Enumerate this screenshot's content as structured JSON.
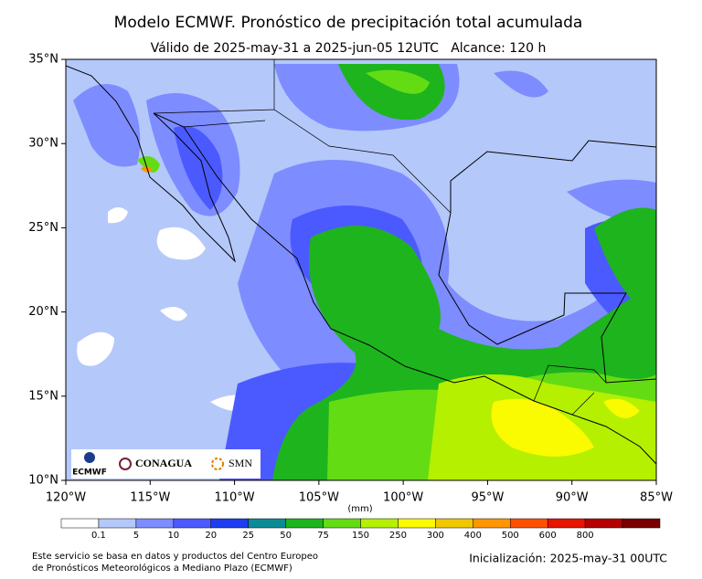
{
  "map": {
    "title": "Modelo ECMWF. Pronóstico de precipitación total acumulada",
    "subtitle": "Válido de 2025-may-31 a 2025-jun-05 12UTC   Alcance: 120 h",
    "lonlim": [
      -120,
      -85
    ],
    "latlim": [
      10,
      35
    ],
    "lon_ticks": [
      {
        "value": -120,
        "label": "120°W"
      },
      {
        "value": -115,
        "label": "115°W"
      },
      {
        "value": -110,
        "label": "110°W"
      },
      {
        "value": -105,
        "label": "105°W"
      },
      {
        "value": -100,
        "label": "100°W"
      },
      {
        "value": -95,
        "label": "95°W"
      },
      {
        "value": -90,
        "label": "90°W"
      },
      {
        "value": -85,
        "label": "85°W"
      }
    ],
    "lat_ticks": [
      {
        "value": 10,
        "label": "10°N"
      },
      {
        "value": 15,
        "label": "15°N"
      },
      {
        "value": 20,
        "label": "20°N"
      },
      {
        "value": 25,
        "label": "25°N"
      },
      {
        "value": 30,
        "label": "30°N"
      },
      {
        "value": 35,
        "label": "35°N"
      }
    ],
    "logos": [
      "ECMWF",
      "CONAGUA",
      "SMN"
    ]
  },
  "colorbar": {
    "unit": "(mm)",
    "labels": [
      "0.1",
      "5",
      "10",
      "20",
      "25",
      "50",
      "75",
      "150",
      "250",
      "300",
      "400",
      "500",
      "600",
      "800"
    ],
    "colors": [
      "#ffffff",
      "#b4c8fa",
      "#7d8cff",
      "#4b5aff",
      "#1e3cf0",
      "#0a8c96",
      "#1eb41e",
      "#64dc14",
      "#b4f000",
      "#fafa00",
      "#f0c800",
      "#ff9600",
      "#ff5000",
      "#e61400",
      "#b40000",
      "#780000"
    ]
  },
  "footer": {
    "source_lines": [
      "Este servicio se basa en datos y productos del Centro Europeo",
      "de Pronósticos Meteorológicos a Mediano Plazo (ECMWF)"
    ],
    "init": "Inicialización: 2025-may-31 00UTC"
  }
}
